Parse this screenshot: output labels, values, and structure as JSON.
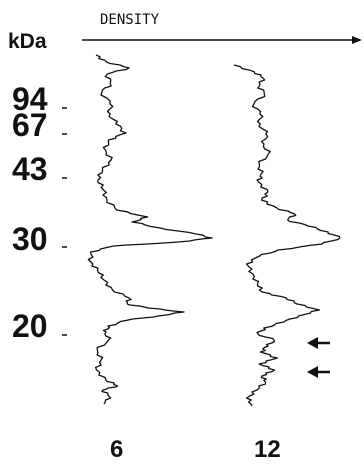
{
  "chart_data": {
    "type": "line",
    "header_label": "DENSITY",
    "unit_label": "kDa",
    "markers": [
      {
        "label": "94",
        "kda": 94
      },
      {
        "label": "67",
        "kda": 67
      },
      {
        "label": "43",
        "kda": 43
      },
      {
        "label": "30",
        "kda": 30
      },
      {
        "label": "20",
        "kda": 20
      }
    ],
    "lanes": [
      {
        "label": "6"
      },
      {
        "label": "12"
      }
    ],
    "arrow_count": 2,
    "colors": {
      "ink": "#111111",
      "background": "#ffffff"
    }
  }
}
